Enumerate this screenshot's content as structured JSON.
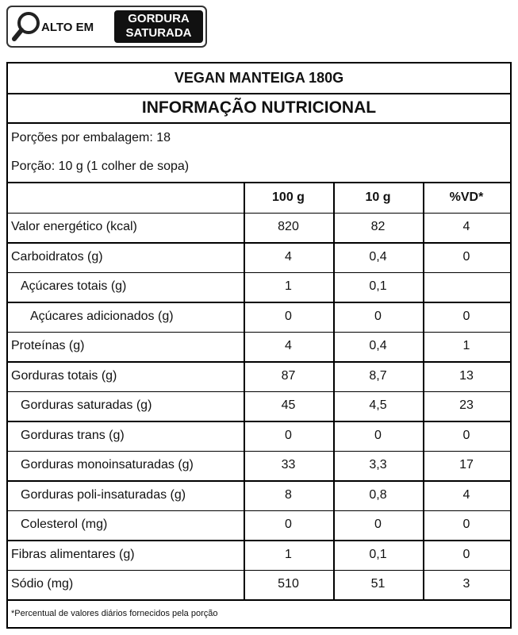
{
  "badge": {
    "label": "ALTO EM",
    "nutrient": [
      "GORDURA",
      "SATURADA"
    ]
  },
  "label": {
    "title": "VEGAN MANTEIGA 180G",
    "subtitle": "INFORMAÇÃO NUTRICIONAL",
    "servings": [
      "Porções por embalagem: 18",
      "Porção: 10 g (1 colher de sopa)"
    ],
    "header": [
      "100 g",
      "10 g",
      "%VD*"
    ],
    "rows": [
      [
        "Valor energético (kcal)",
        "820",
        "82",
        "4"
      ],
      [
        "Carboidratos (g)",
        "4",
        "0,4",
        "0"
      ],
      [
        "Açúcares totais (g)",
        "1",
        "0,1",
        null
      ],
      [
        "Açúcares adicionados (g)",
        "0",
        "0",
        "0"
      ],
      [
        "Proteínas (g)",
        "4",
        "0,4",
        "1"
      ],
      [
        "Gorduras totais (g)",
        "87",
        "8,7",
        "13"
      ],
      [
        "Gorduras saturadas (g)",
        "45",
        "4,5",
        "23"
      ],
      [
        "Gorduras trans (g)",
        "0",
        "0",
        "0"
      ],
      [
        "Gorduras monoinsaturadas (g)",
        "33",
        "3,3",
        "17"
      ],
      [
        "Gorduras poli-insaturadas (g)",
        "8",
        "0,8",
        "4"
      ],
      [
        "Colesterol (mg)",
        "0",
        "0",
        "0"
      ],
      [
        "Fibras alimentares (g)",
        "1",
        "0,1",
        "0"
      ],
      [
        "Sódio (mg)",
        "510",
        "51",
        "3"
      ]
    ],
    "footnote": "*Percentual de valores diários fornecidos pela porção"
  }
}
